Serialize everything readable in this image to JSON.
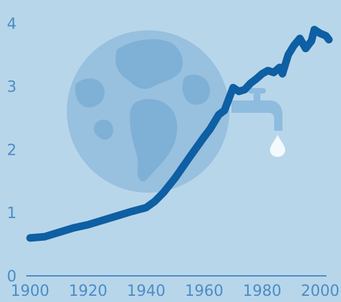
{
  "chart_data": {
    "type": "line",
    "title": "",
    "xlabel": "",
    "ylabel": "",
    "xlim": [
      1892,
      2006
    ],
    "ylim": [
      0,
      4.15
    ],
    "x_ticks": [
      "1900",
      "1920",
      "1940",
      "1960",
      "1980",
      "2000"
    ],
    "y_ticks": [
      "0",
      "1",
      "2",
      "3",
      "4"
    ],
    "grid": false,
    "legend": "none",
    "colors": {
      "background": "#b8d6ea",
      "line": "#0e5fa3",
      "globe": "#98c0df",
      "land": "#7fb0d6",
      "tick_text": "#4a8cc6",
      "axis": "#4a8cc6",
      "tap": "#8dbcdf",
      "drop": "#f4f9fd"
    },
    "illustrations": [
      "globe-icon",
      "water-tap-icon",
      "water-drop-icon"
    ],
    "series": [
      {
        "x": [
          1900,
          1905,
          1910,
          1915,
          1920,
          1925,
          1930,
          1935,
          1940,
          1943,
          1946,
          1950,
          1955,
          1960,
          1962,
          1965,
          1967,
          1970,
          1972,
          1974,
          1976,
          1978,
          1980,
          1982,
          1984,
          1986,
          1987,
          1989,
          1991,
          1993,
          1995,
          1997,
          1998,
          2000,
          2002,
          2003
        ],
        "y": [
          0.6,
          0.62,
          0.69,
          0.76,
          0.81,
          0.88,
          0.95,
          1.02,
          1.08,
          1.18,
          1.32,
          1.55,
          1.88,
          2.2,
          2.32,
          2.55,
          2.62,
          2.98,
          2.92,
          2.95,
          3.05,
          3.12,
          3.2,
          3.25,
          3.22,
          3.3,
          3.2,
          3.5,
          3.65,
          3.76,
          3.6,
          3.72,
          3.9,
          3.84,
          3.8,
          3.74
        ]
      }
    ]
  }
}
